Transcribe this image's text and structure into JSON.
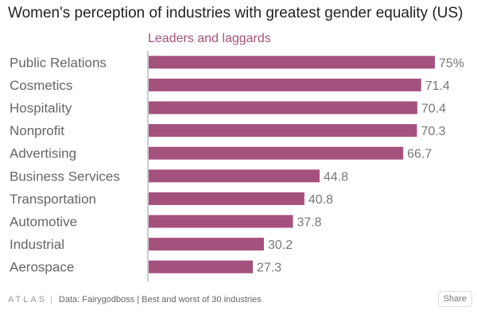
{
  "title": "Women's perception of industries with greatest gender equality (US)",
  "subtitle": "Leaders and laggards",
  "footer": {
    "logo": "ATLAS",
    "separator": "|",
    "source": "Data: Fairygodboss | Best and worst of 30 industries",
    "share_label": "Share"
  },
  "colors": {
    "bar": "#a5517d",
    "label": "#666666",
    "value": "#777777",
    "axis": "#999999"
  },
  "chart_data": {
    "type": "bar",
    "orientation": "horizontal",
    "title": "Women's perception of industries with greatest gender equality (US)",
    "subtitle": "Leaders and laggards",
    "categories": [
      "Public Relations",
      "Cosmetics",
      "Hospitality",
      "Nonprofit",
      "Advertising",
      "Business Services",
      "Transportation",
      "Automotive",
      "Industrial",
      "Aerospace"
    ],
    "values": [
      75,
      71.4,
      70.4,
      70.3,
      66.7,
      44.8,
      40.8,
      37.8,
      30.2,
      27.3
    ],
    "value_labels": [
      "75%",
      "71.4",
      "70.4",
      "70.3",
      "66.7",
      "44.8",
      "40.8",
      "37.8",
      "30.2",
      "27.3"
    ],
    "xlim": [
      0,
      75
    ],
    "grid": false,
    "legend": "none"
  }
}
